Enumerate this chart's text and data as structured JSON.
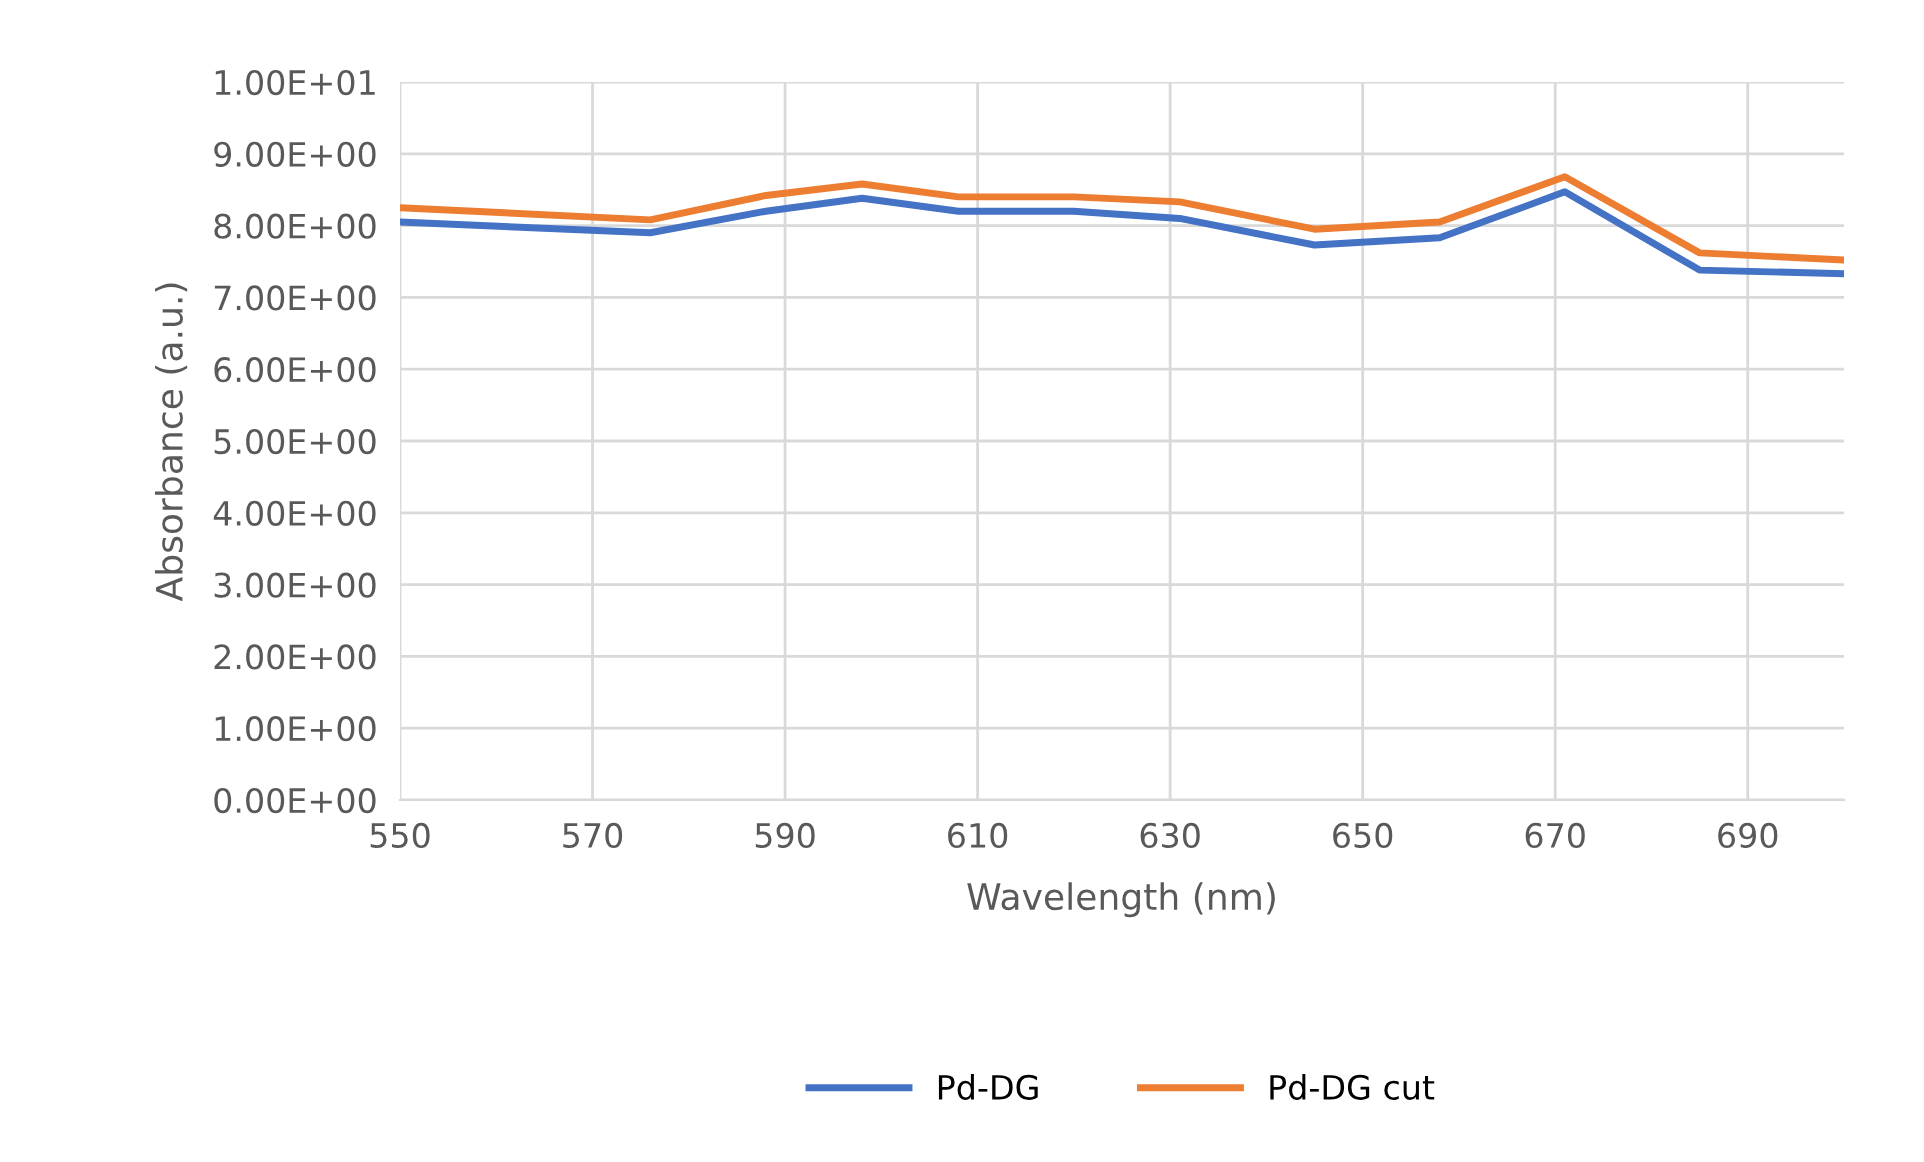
{
  "chart_data": {
    "type": "line",
    "xlabel": "Wavelength (nm)",
    "ylabel": "Absorbance (a.u.)",
    "x": [
      550,
      576,
      588,
      598,
      608,
      620,
      631,
      645,
      658,
      671,
      685,
      700
    ],
    "series": [
      {
        "name": "Pd-DG",
        "color": "#4472c4",
        "values": [
          8.05,
          7.9,
          8.2,
          8.38,
          8.2,
          8.2,
          8.1,
          7.73,
          7.83,
          8.47,
          7.38,
          7.33
        ]
      },
      {
        "name": "Pd-DG cut",
        "color": "#ed7d31",
        "values": [
          8.25,
          8.08,
          8.42,
          8.58,
          8.4,
          8.4,
          8.33,
          7.95,
          8.05,
          8.68,
          7.62,
          7.52
        ]
      }
    ],
    "xlim": [
      550,
      700
    ],
    "xticks": [
      550,
      570,
      590,
      610,
      630,
      650,
      670,
      690
    ],
    "ylim": [
      0,
      10
    ],
    "yticks": [
      {
        "value": 0,
        "label": "0.00E+00"
      },
      {
        "value": 1,
        "label": "1.00E+00"
      },
      {
        "value": 2,
        "label": "2.00E+00"
      },
      {
        "value": 3,
        "label": "3.00E+00"
      },
      {
        "value": 4,
        "label": "4.00E+00"
      },
      {
        "value": 5,
        "label": "5.00E+00"
      },
      {
        "value": 6,
        "label": "6.00E+00"
      },
      {
        "value": 7,
        "label": "7.00E+00"
      },
      {
        "value": 8,
        "label": "8.00E+00"
      },
      {
        "value": 9,
        "label": "9.00E+00"
      },
      {
        "value": 10,
        "label": "1.00E+01"
      }
    ],
    "grid": true,
    "legend": "bottom",
    "marker": "none",
    "line_style": "solid"
  }
}
